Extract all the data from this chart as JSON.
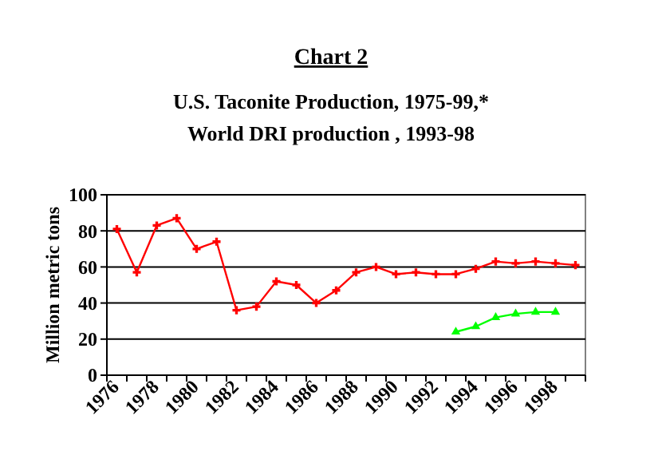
{
  "chart_data": {
    "type": "line",
    "title": "Chart 2",
    "subtitle": "U.S. Taconite Production, 1975-99,*\nWorld DRI production , 1993-98",
    "ylabel": "Million metric tons",
    "categories": [
      "1976",
      null,
      "1978",
      null,
      "1980",
      null,
      "1982",
      null,
      "1984",
      null,
      "1986",
      null,
      "1988",
      null,
      "1990",
      null,
      "1992",
      null,
      "1994",
      null,
      "1996",
      null,
      "1998",
      null
    ],
    "series": [
      {
        "color": "#ff0000",
        "marker": "cross",
        "values": [
          81,
          57,
          83,
          87,
          70,
          74,
          36,
          38,
          52,
          50,
          40,
          47,
          57,
          60,
          56,
          57,
          56,
          56,
          59,
          63,
          62,
          63,
          62,
          61
        ]
      },
      {
        "color": "#00ff00",
        "marker": "triangle",
        "values": [
          null,
          null,
          null,
          null,
          null,
          null,
          null,
          null,
          null,
          null,
          null,
          null,
          null,
          null,
          null,
          null,
          null,
          24,
          27,
          32,
          34,
          35,
          35,
          null
        ]
      }
    ],
    "ylim": [
      0,
      100
    ],
    "yticks": [
      0,
      20,
      40,
      60,
      80,
      100
    ],
    "grid": "y"
  }
}
